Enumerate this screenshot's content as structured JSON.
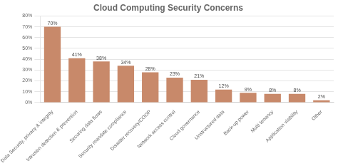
{
  "chart_data": {
    "type": "bar",
    "title": "Cloud Computing Security Concerns",
    "categories": [
      "Data Security, privacy & integrity",
      "Intrusion detection & prevention",
      "Securing data flows",
      "Security mandate compliance",
      "Disaster recovery/COOP",
      "Network access control",
      "Cloud governance",
      "Unstructured data",
      "Back-up power",
      "Multi tenancy",
      "Application visibility",
      "Other"
    ],
    "values": [
      70,
      41,
      38,
      34,
      28,
      23,
      21,
      12,
      9,
      8,
      8,
      2
    ],
    "value_labels": [
      "70%",
      "41%",
      "38%",
      "34%",
      "28%",
      "23%",
      "21%",
      "12%",
      "9%",
      "8%",
      "8%",
      "2%"
    ],
    "data_labels": true,
    "color": "#C8896A",
    "ylim": [
      0,
      80
    ],
    "yticks": [
      {
        "value": 0,
        "label": "0%"
      },
      {
        "value": 10,
        "label": "10%"
      },
      {
        "value": 20,
        "label": "20%"
      },
      {
        "value": 30,
        "label": "30%"
      },
      {
        "value": 40,
        "label": "40%"
      },
      {
        "value": 50,
        "label": "50%"
      },
      {
        "value": 60,
        "label": "60%"
      },
      {
        "value": 70,
        "label": "70%"
      },
      {
        "value": 80,
        "label": "80%"
      }
    ],
    "grid": true
  }
}
